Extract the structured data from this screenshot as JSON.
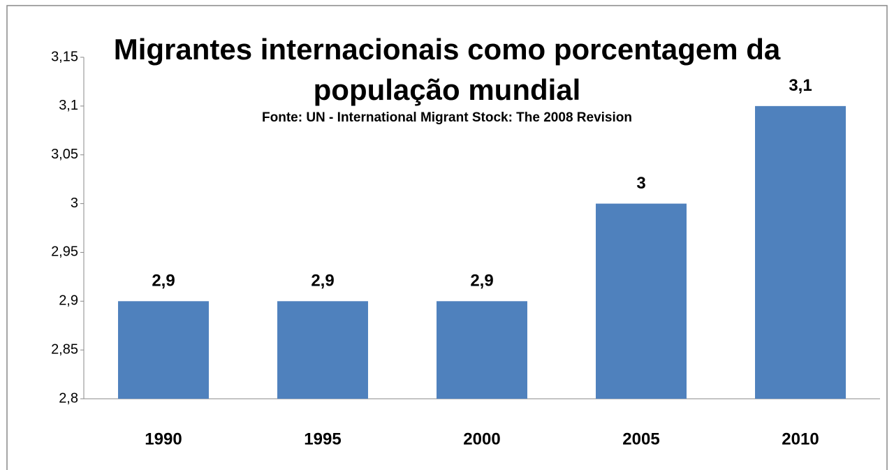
{
  "chart_data": {
    "type": "bar",
    "title": "Migrantes internacionais como porcentagem da população mundial",
    "subtitle": "Fonte: UN - International Migrant Stock: The 2008 Revision",
    "categories": [
      "1990",
      "1995",
      "2000",
      "2005",
      "2010"
    ],
    "values": [
      2.9,
      2.9,
      2.9,
      3,
      3.1
    ],
    "value_labels": [
      "2,9",
      "2,9",
      "2,9",
      "3",
      "3,1"
    ],
    "color": "#4f81bd",
    "ylim": [
      2.8,
      3.15
    ],
    "yticks": [
      {
        "value": 2.8,
        "label": "2,8"
      },
      {
        "value": 2.85,
        "label": "2,85"
      },
      {
        "value": 2.9,
        "label": "2,9"
      },
      {
        "value": 2.95,
        "label": "2,95"
      },
      3,
      {
        "value": 3.05,
        "label": "3,05"
      },
      {
        "value": 3.1,
        "label": "3,1"
      },
      {
        "value": 3.15,
        "label": "3,15"
      }
    ],
    "grid": false
  }
}
